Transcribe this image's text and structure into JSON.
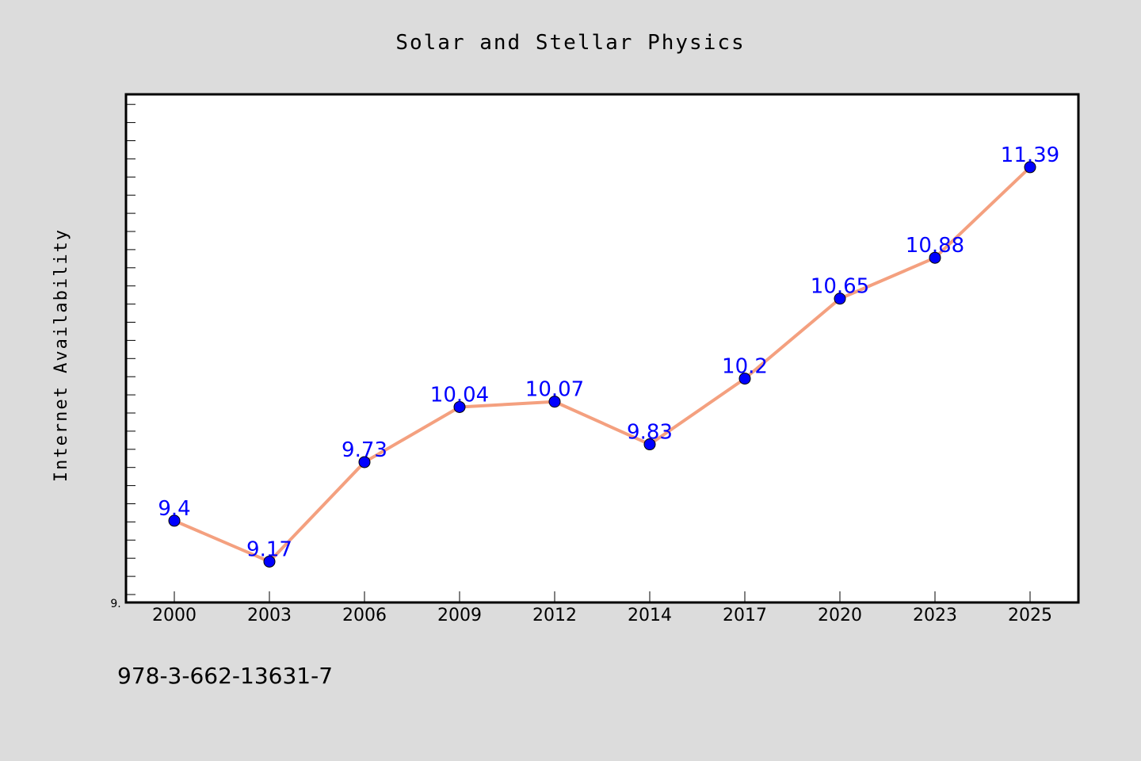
{
  "colors": {
    "background": "#dcdcdc",
    "plot_background": "#ffffff",
    "line": "#f4a07f",
    "marker": "#0000ff",
    "label": "#0000ff"
  },
  "footer_text": "978-3-662-13631-7",
  "chart_data": {
    "type": "line",
    "title": "Solar and Stellar Physics",
    "xlabel": "",
    "ylabel": "Internet Availability",
    "categories": [
      "2000",
      "2003",
      "2006",
      "2009",
      "2012",
      "2014",
      "2017",
      "2020",
      "2023",
      "2025"
    ],
    "series": [
      {
        "values": [
          9.4,
          9.17,
          9.73,
          10.04,
          10.07,
          9.83,
          10.2,
          10.65,
          10.88,
          11.39
        ]
      }
    ],
    "data_labels": [
      "9.4",
      "9.17",
      "9.73",
      "10.04",
      "10.07",
      "9.83",
      "10.2",
      "10.65",
      "10.88",
      "11.39"
    ],
    "ylim": [
      8.94,
      11.8
    ],
    "ytick_label": "9.",
    "grid": false,
    "legend": "none"
  }
}
